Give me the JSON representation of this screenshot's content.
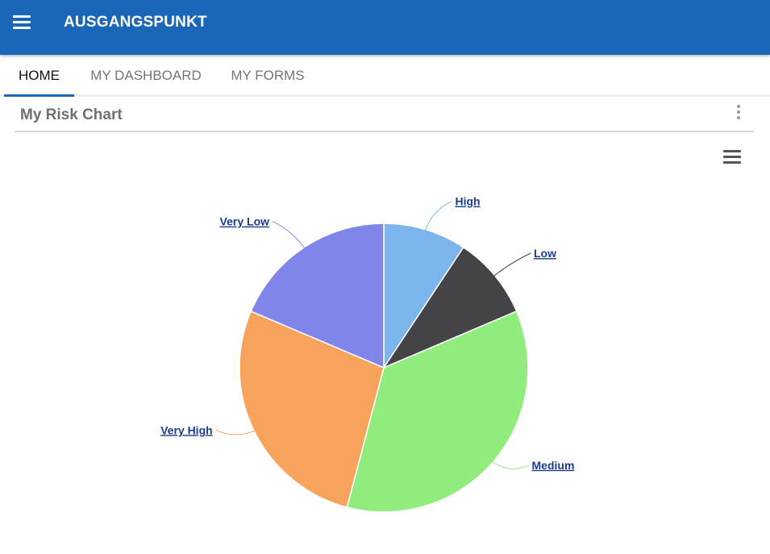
{
  "app": {
    "title": "AUSGANGSPUNKT",
    "menu_icon": "hamburger-menu-icon"
  },
  "tabs": [
    {
      "label": "HOME",
      "active": true
    },
    {
      "label": "MY DASHBOARD",
      "active": false
    },
    {
      "label": "MY FORMS",
      "active": false
    }
  ],
  "card": {
    "title": "My Risk Chart",
    "options_icon": "kebab-menu-icon",
    "export_icon": "chart-menu-icon"
  },
  "chart_data": {
    "type": "pie",
    "categories": [
      "High",
      "Low",
      "Medium",
      "Very High",
      "Very Low"
    ],
    "values": [
      9.3,
      9.3,
      35.5,
      27.3,
      18.6
    ],
    "colors": [
      "#7cb5ec",
      "#434348",
      "#90ed7d",
      "#f7a35c",
      "#8085e9"
    ],
    "legend": "none",
    "data_labels": true
  }
}
